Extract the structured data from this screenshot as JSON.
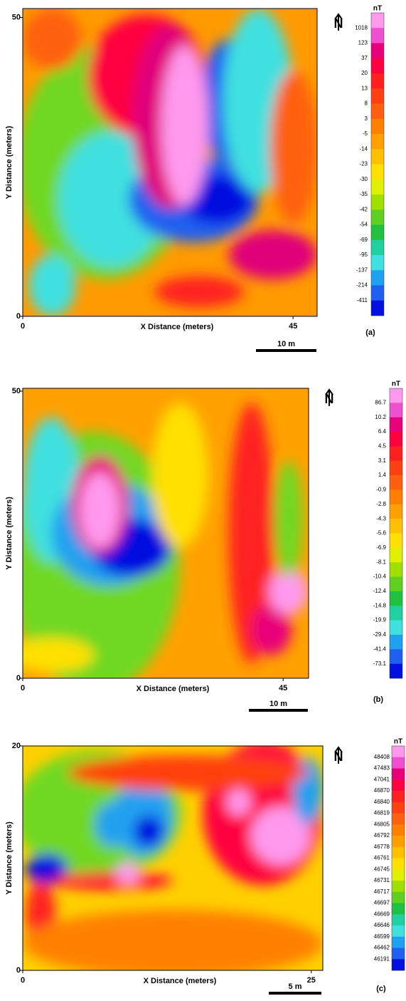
{
  "chart_data": [
    {
      "type": "contour",
      "panel_label": "(a)",
      "xlabel": "X Distance (meters)",
      "ylabel": "Y Distance (meters)",
      "xlim": [
        0,
        49
      ],
      "xticks": [
        0,
        45
      ],
      "ylim": [
        0,
        51.5
      ],
      "yticks": [
        0,
        50
      ],
      "colorbar_label": "nT",
      "colorbar_ticks": [
        1018,
        123,
        37,
        20,
        13,
        8,
        3,
        -5,
        -14,
        -23,
        -30,
        -35,
        -42,
        -54,
        -69,
        -95,
        -137,
        -214,
        -411
      ],
      "colors": [
        "#ff99ee",
        "#f050d0",
        "#e8007a",
        "#ff0040",
        "#ff2020",
        "#ff4010",
        "#ff6010",
        "#ff8000",
        "#ffa000",
        "#ffc000",
        "#ffe000",
        "#e0f000",
        "#a0e000",
        "#60d020",
        "#20c040",
        "#20d0a0",
        "#40e0e0",
        "#20a0f0",
        "#2060f0",
        "#0010e0"
      ],
      "scale_bar": "10 m",
      "north_label": "N"
    },
    {
      "type": "contour",
      "panel_label": "(b)",
      "xlabel": "X Distance (meters)",
      "ylabel": "Y Distance (meters)",
      "xlim": [
        0,
        49.4
      ],
      "xticks": [
        0,
        45
      ],
      "ylim": [
        0,
        50.5
      ],
      "yticks": [
        0,
        50
      ],
      "colorbar_label": "nT",
      "colorbar_ticks": [
        86.7,
        10.2,
        6.4,
        4.5,
        3.1,
        1.4,
        -0.9,
        -2.8,
        -4.3,
        -5.6,
        -6.9,
        -8.1,
        -10.4,
        -12.4,
        -14.8,
        -19.9,
        -29.4,
        -41.4,
        -73.1
      ],
      "colors": [
        "#ff99ee",
        "#f050d0",
        "#e8007a",
        "#ff0040",
        "#ff2020",
        "#ff4010",
        "#ff6010",
        "#ff8000",
        "#ffa000",
        "#ffc000",
        "#ffe000",
        "#e0f000",
        "#a0e000",
        "#60d020",
        "#20c040",
        "#20d0a0",
        "#40e0e0",
        "#20a0f0",
        "#2060f0",
        "#0010e0"
      ],
      "scale_bar": "10 m",
      "north_label": "N"
    },
    {
      "type": "contour",
      "panel_label": "(c)",
      "xlabel": "X Distance (meters)",
      "ylabel": "Y Distance (meters)",
      "xlim": [
        0,
        26
      ],
      "xticks": [
        0,
        25
      ],
      "ylim": [
        0,
        20
      ],
      "yticks": [
        0,
        20
      ],
      "colorbar_label": "nT",
      "colorbar_ticks": [
        48408,
        47483,
        47041,
        46870,
        46840,
        46819,
        46805,
        46792,
        46778,
        46761,
        46745,
        46731,
        46717,
        46697,
        46669,
        46646,
        46599,
        46462,
        46191
      ],
      "colors": [
        "#ff99ee",
        "#f050d0",
        "#e8007a",
        "#ff0040",
        "#ff2020",
        "#ff4010",
        "#ff6010",
        "#ff8000",
        "#ffa000",
        "#ffc000",
        "#ffe000",
        "#e0f000",
        "#a0e000",
        "#60d020",
        "#20c040",
        "#20d0a0",
        "#40e0e0",
        "#20a0f0",
        "#2060f0",
        "#0010e0"
      ],
      "scale_bar": "5 m",
      "north_label": "N"
    }
  ]
}
